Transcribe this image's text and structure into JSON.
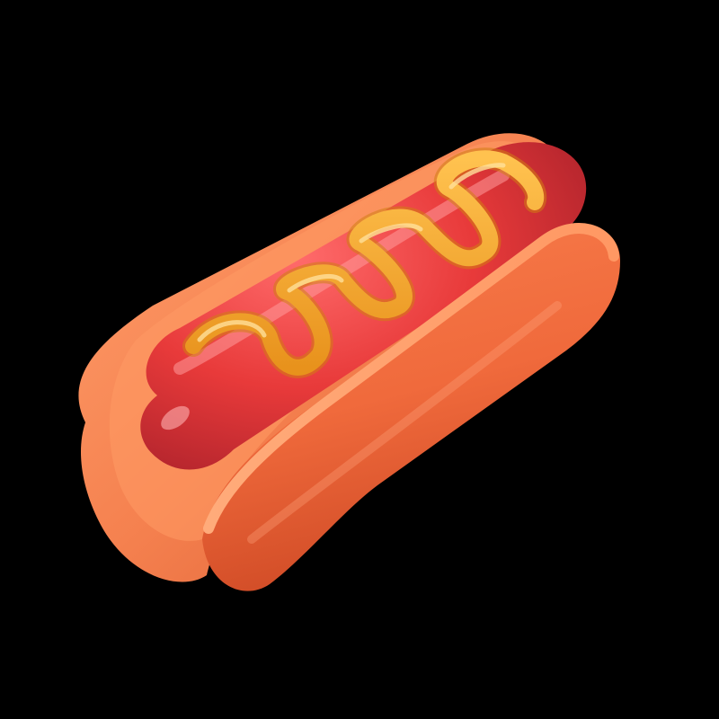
{
  "scene": {
    "subject": "hotdog-3d-icon",
    "colors": {
      "background": "#000000",
      "bun_outer": "#f07a4a",
      "bun_inner": "#ff9a64",
      "bun_shadow": "#c94a2a",
      "bun_highlight": "#ffb487",
      "sausage": "#e83a3a",
      "sausage_dark": "#a8202a",
      "sausage_highlight": "#ff8a8a",
      "mustard": "#f3a92c",
      "mustard_highlight": "#ffd27a",
      "mustard_shadow": "#d27d12"
    }
  }
}
